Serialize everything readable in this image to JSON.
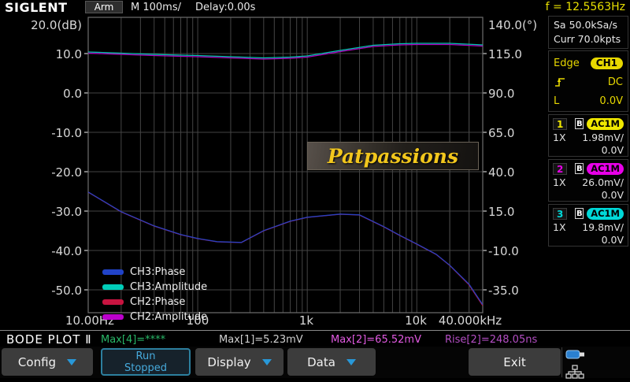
{
  "header": {
    "brand": "SIGLENT",
    "acq_status": "Arm",
    "timebase": "M 100ms/",
    "delay": "Delay:0.00s",
    "freq_readout": "f = 12.5563Hz"
  },
  "right_panel": {
    "sample_rate": "Sa 50.0kSa/s",
    "memory_depth": "Curr 70.0kpts",
    "trigger": {
      "type": "Edge",
      "source": "CH1",
      "coupling": "DC",
      "level_label": "L",
      "level": "0.0V",
      "color": "#e8d800"
    },
    "channels": [
      {
        "num": "1",
        "bw": "B",
        "coupling": "AC1M",
        "atten": "1X",
        "scale": "1.98mV/",
        "offset": "0.0V",
        "color": "#f0e800"
      },
      {
        "num": "2",
        "bw": "B",
        "coupling": "AC1M",
        "atten": "1X",
        "scale": "26.0mV/",
        "offset": "0.0V",
        "color": "#e800e8"
      },
      {
        "num": "3",
        "bw": "B",
        "coupling": "AC1M",
        "atten": "1X",
        "scale": "19.8mV/",
        "offset": "0.0V",
        "color": "#00d8d8"
      }
    ]
  },
  "watermark": "Patpassions",
  "legend": [
    {
      "label": "CH3:Phase",
      "color": "#2143c8"
    },
    {
      "label": "CH3:Amplitude",
      "color": "#00cdb9"
    },
    {
      "label": "CH2:Phase",
      "color": "#c81440"
    },
    {
      "label": "CH2:Amplitude",
      "color": "#bb00cc"
    }
  ],
  "status_bar": {
    "title": "BODE PLOT Ⅱ",
    "measurements": [
      {
        "text": "Max[4]=****",
        "color": "#28b868"
      },
      {
        "text": "Max[1]=5.23mV",
        "color": "#d0d0d0"
      },
      {
        "text": "Max[2]=65.52mV",
        "color": "#e25ae2"
      },
      {
        "text": "Rise[2]=248.05ns",
        "color": "#b44ec4"
      }
    ]
  },
  "menu": {
    "config": "Config",
    "run_line1": "Run",
    "run_line2": "Stopped",
    "display": "Display",
    "data": "Data",
    "exit": "Exit"
  },
  "chart_data": {
    "type": "line",
    "title": "Bode plot: amplitude (dB, left axis) and phase (°, right axis) vs frequency (log)",
    "xlabel": "Frequency",
    "x_scale": "log",
    "x_range": [
      10,
      40000
    ],
    "x_tick_labels": [
      "10.00Hz",
      "100",
      "1k",
      "10k",
      "40.000kHz"
    ],
    "left_axis": {
      "label": "20.0(dB)",
      "tick_labels": [
        "20.0(dB)",
        "10.0",
        "0.0",
        "-10.0",
        "-20.0",
        "-30.0",
        "-40.0",
        "-50.0"
      ],
      "grid_tick_values": [
        10,
        0,
        -10,
        -20,
        -30,
        -40,
        -50
      ],
      "range": [
        19.2,
        -55.8
      ]
    },
    "right_axis": {
      "label": "140.0(°)",
      "tick_labels": [
        "140.0(°)",
        "115.0",
        "90.0",
        "65.0",
        "40.0",
        "15.0",
        "-10.0",
        "-35.0"
      ],
      "grid_tick_values": [
        115,
        90,
        65,
        40,
        15,
        -10,
        -35
      ],
      "range": [
        138,
        -49.5
      ]
    },
    "grid": true,
    "legend_position": "bottom-left inside plot",
    "series": [
      {
        "name": "CH3:Amplitude",
        "axis": "left_axis",
        "color": "#00cdb9",
        "x": [
          10,
          20,
          40,
          70,
          100,
          200,
          400,
          700,
          1000,
          2000,
          4000,
          7000,
          10000,
          20000,
          40000
        ],
        "y": [
          10.4,
          10.1,
          9.8,
          9.6,
          9.5,
          9.2,
          8.9,
          9.1,
          9.4,
          10.8,
          12.1,
          12.5,
          12.6,
          12.6,
          12.2
        ]
      },
      {
        "name": "CH2:Amplitude",
        "axis": "left_axis",
        "color": "#bb00cc",
        "x": [
          10,
          20,
          40,
          70,
          100,
          200,
          400,
          700,
          1000,
          2000,
          4000,
          7000,
          10000,
          20000,
          40000
        ],
        "y": [
          10.25,
          9.95,
          9.65,
          9.45,
          9.35,
          9.05,
          8.75,
          8.95,
          9.25,
          10.65,
          11.95,
          12.35,
          12.45,
          12.45,
          12.05
        ]
      },
      {
        "name": "CH2:Phase",
        "axis": "right_axis",
        "color": "#c81440",
        "x": [
          10,
          20,
          40,
          70,
          100,
          150,
          250,
          400,
          700,
          1000,
          2000,
          3000,
          5000,
          7000,
          10000,
          15000,
          20000,
          30000,
          40000
        ],
        "y": [
          27,
          14.5,
          5.5,
          0,
          -2.5,
          -4.5,
          -5,
          2.5,
          8.5,
          11,
          13,
          12.5,
          5,
          -0.5,
          -6,
          -12.5,
          -19.5,
          -31.8,
          -45
        ]
      },
      {
        "name": "CH3:Phase",
        "axis": "right_axis",
        "color": "#2143c8",
        "x": [
          10,
          20,
          40,
          70,
          100,
          150,
          250,
          400,
          700,
          1000,
          2000,
          3000,
          5000,
          7000,
          10000,
          15000,
          20000,
          30000,
          40000
        ],
        "y": [
          27.5,
          15,
          6,
          0.5,
          -2,
          -4,
          -4.5,
          3,
          9,
          11.5,
          13.5,
          13,
          5.5,
          0,
          -5.5,
          -12,
          -19,
          -31,
          -44
        ]
      }
    ]
  }
}
